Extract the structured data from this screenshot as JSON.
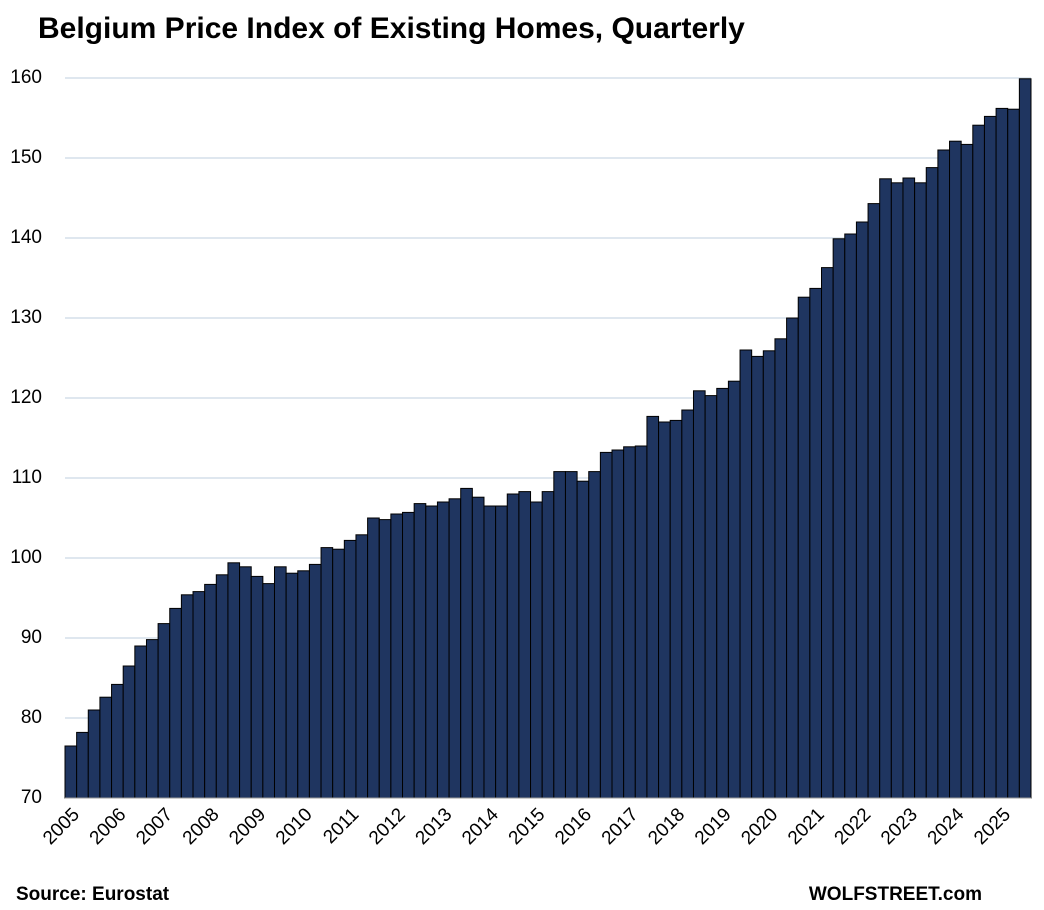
{
  "chart_data": {
    "type": "bar",
    "title": "Belgium Price Index of Existing Homes, Quarterly",
    "source": "Source: Eurostat",
    "credit": "WOLFSTREET.com",
    "categories": [
      "2005",
      null,
      null,
      null,
      "2006",
      null,
      null,
      null,
      "2007",
      null,
      null,
      null,
      "2008",
      null,
      null,
      null,
      "2009",
      null,
      null,
      null,
      "2010",
      null,
      null,
      null,
      "2011",
      null,
      null,
      null,
      "2012",
      null,
      null,
      null,
      "2013",
      null,
      null,
      null,
      "2014",
      null,
      null,
      null,
      "2015",
      null,
      null,
      null,
      "2016",
      null,
      null,
      null,
      "2017",
      null,
      null,
      null,
      "2018",
      null,
      null,
      null,
      "2019",
      null,
      null,
      null,
      "2020",
      null,
      null,
      null,
      "2021",
      null,
      null,
      null,
      "2022",
      null,
      null,
      null,
      "2023",
      null,
      null,
      null,
      "2024",
      null,
      null,
      null,
      "2025",
      null,
      null
    ],
    "values": [
      76.5,
      78.2,
      81,
      82.6,
      84.2,
      86.5,
      89,
      89.8,
      91.8,
      93.7,
      95.4,
      95.8,
      96.7,
      97.9,
      99.4,
      98.9,
      97.7,
      96.8,
      98.9,
      98.1,
      98.4,
      99.2,
      101.3,
      101.1,
      102.2,
      102.9,
      105,
      104.8,
      105.5,
      105.7,
      106.8,
      106.5,
      107,
      107.4,
      108.7,
      107.6,
      106.5,
      106.5,
      108,
      108.3,
      107,
      108.3,
      110.8,
      110.8,
      109.6,
      110.8,
      113.2,
      113.5,
      113.9,
      114,
      117.7,
      117,
      117.2,
      118.5,
      120.9,
      120.3,
      121.2,
      122.1,
      126,
      125.2,
      125.9,
      127.4,
      130,
      132.6,
      133.7,
      136.3,
      139.9,
      140.5,
      142,
      144.3,
      147.4,
      146.9,
      147.5,
      146.9,
      148.8,
      151,
      152.1,
      151.7,
      154.1,
      155.2,
      156.2,
      156.1,
      159.9
    ],
    "color": "#1f3560",
    "ylim": [
      70,
      160
    ],
    "yticks": [
      70,
      80,
      90,
      100,
      110,
      120,
      130,
      140,
      150,
      160
    ],
    "grid": true
  }
}
